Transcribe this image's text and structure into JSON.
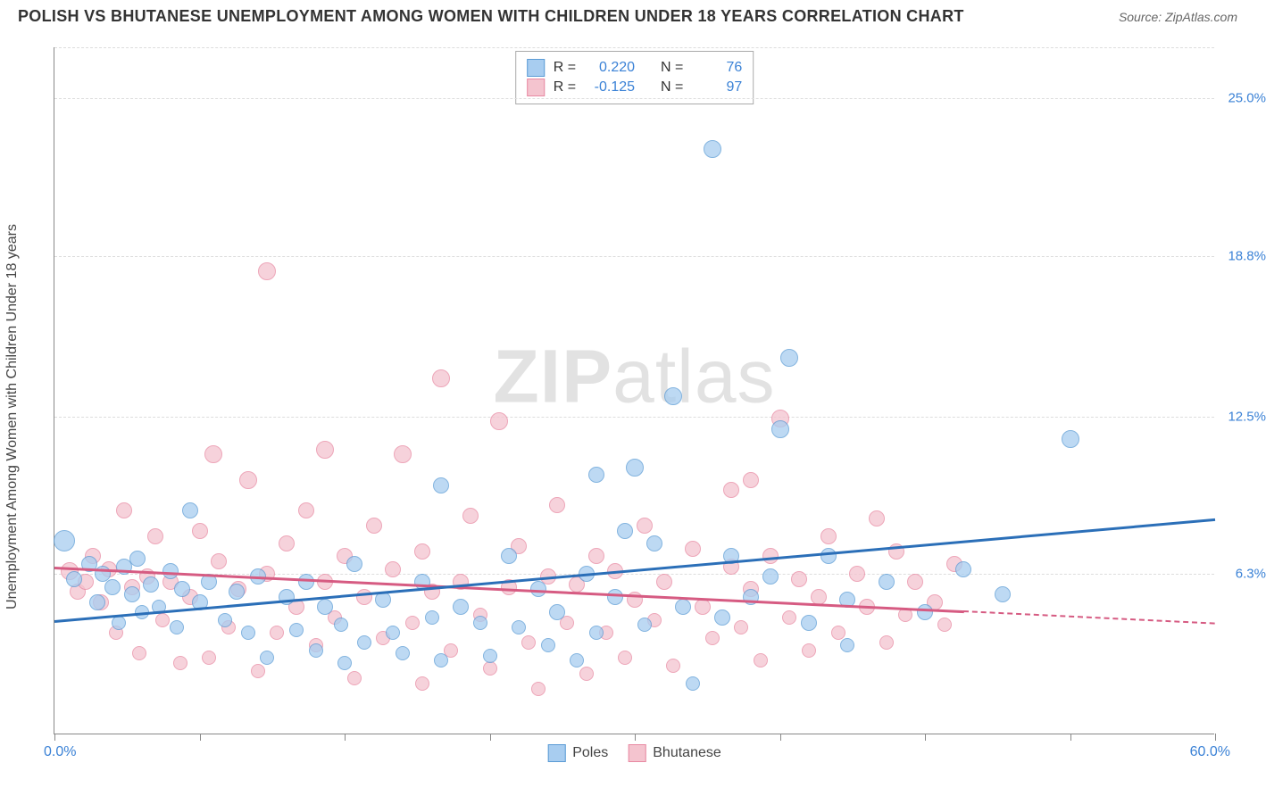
{
  "header": {
    "title": "POLISH VS BHUTANESE UNEMPLOYMENT AMONG WOMEN WITH CHILDREN UNDER 18 YEARS CORRELATION CHART",
    "source": "Source: ZipAtlas.com"
  },
  "chart": {
    "type": "scatter",
    "ylabel": "Unemployment Among Women with Children Under 18 years",
    "xlim": [
      0,
      60
    ],
    "ylim": [
      0,
      27
    ],
    "xrange_labels": {
      "min": "0.0%",
      "max": "60.0%"
    },
    "xtick_positions": [
      0,
      7.5,
      15,
      22.5,
      30,
      37.5,
      45,
      52.5,
      60
    ],
    "yticks": [
      {
        "value": 6.3,
        "label": "6.3%"
      },
      {
        "value": 12.5,
        "label": "12.5%"
      },
      {
        "value": 18.8,
        "label": "18.8%"
      },
      {
        "value": 25.0,
        "label": "25.0%"
      }
    ],
    "grid_color": "#dddddd",
    "axis_color": "#888888",
    "background_color": "#ffffff",
    "ytick_label_color": "#3b82d6",
    "xrange_label_color": "#3b82d6",
    "title_fontsize": 18,
    "label_fontsize": 16,
    "tick_fontsize": 15,
    "watermark": {
      "pre": "ZIP",
      "post": "atlas",
      "color": "#cccccc"
    },
    "legend_top": {
      "rows": [
        {
          "swatch": "poles",
          "r_label": "R =",
          "r_value": "0.220",
          "n_label": "N =",
          "n_value": "76"
        },
        {
          "swatch": "bhutanese",
          "r_label": "R =",
          "r_value": "-0.125",
          "n_label": "N =",
          "n_value": "97"
        }
      ]
    },
    "legend_bottom": [
      {
        "swatch": "poles",
        "label": "Poles"
      },
      {
        "swatch": "bhutanese",
        "label": "Bhutanese"
      }
    ],
    "series": {
      "poles": {
        "color_fill": "#a8cdf0",
        "color_stroke": "#5a9bd5",
        "trend_color": "#2b6fb8",
        "marker_r": 9,
        "trend": {
          "x1": 0,
          "y1": 4.5,
          "x2": 60,
          "y2": 8.5
        },
        "trend_dash_from_x": null,
        "points": [
          {
            "x": 0.5,
            "y": 7.6,
            "r": 12
          },
          {
            "x": 1.8,
            "y": 6.7,
            "r": 9
          },
          {
            "x": 1.0,
            "y": 6.1,
            "r": 9
          },
          {
            "x": 2.2,
            "y": 5.2,
            "r": 9
          },
          {
            "x": 2.5,
            "y": 6.3,
            "r": 9
          },
          {
            "x": 3.0,
            "y": 5.8,
            "r": 9
          },
          {
            "x": 3.3,
            "y": 4.4,
            "r": 8
          },
          {
            "x": 3.6,
            "y": 6.6,
            "r": 9
          },
          {
            "x": 4.0,
            "y": 5.5,
            "r": 9
          },
          {
            "x": 4.3,
            "y": 6.9,
            "r": 9
          },
          {
            "x": 4.5,
            "y": 4.8,
            "r": 8
          },
          {
            "x": 5.0,
            "y": 5.9,
            "r": 9
          },
          {
            "x": 5.4,
            "y": 5.0,
            "r": 8
          },
          {
            "x": 6.0,
            "y": 6.4,
            "r": 9
          },
          {
            "x": 6.3,
            "y": 4.2,
            "r": 8
          },
          {
            "x": 6.6,
            "y": 5.7,
            "r": 9
          },
          {
            "x": 7.0,
            "y": 8.8,
            "r": 9
          },
          {
            "x": 7.5,
            "y": 5.2,
            "r": 9
          },
          {
            "x": 8.0,
            "y": 6.0,
            "r": 9
          },
          {
            "x": 8.8,
            "y": 4.5,
            "r": 8
          },
          {
            "x": 9.4,
            "y": 5.6,
            "r": 9
          },
          {
            "x": 10.0,
            "y": 4.0,
            "r": 8
          },
          {
            "x": 10.5,
            "y": 6.2,
            "r": 9
          },
          {
            "x": 11.0,
            "y": 3.0,
            "r": 8
          },
          {
            "x": 12.0,
            "y": 5.4,
            "r": 9
          },
          {
            "x": 12.5,
            "y": 4.1,
            "r": 8
          },
          {
            "x": 13.0,
            "y": 6.0,
            "r": 9
          },
          {
            "x": 13.5,
            "y": 3.3,
            "r": 8
          },
          {
            "x": 14.0,
            "y": 5.0,
            "r": 9
          },
          {
            "x": 14.8,
            "y": 4.3,
            "r": 8
          },
          {
            "x": 15.0,
            "y": 2.8,
            "r": 8
          },
          {
            "x": 15.5,
            "y": 6.7,
            "r": 9
          },
          {
            "x": 16.0,
            "y": 3.6,
            "r": 8
          },
          {
            "x": 17.0,
            "y": 5.3,
            "r": 9
          },
          {
            "x": 17.5,
            "y": 4.0,
            "r": 8
          },
          {
            "x": 18.0,
            "y": 3.2,
            "r": 8
          },
          {
            "x": 19.0,
            "y": 6.0,
            "r": 9
          },
          {
            "x": 19.5,
            "y": 4.6,
            "r": 8
          },
          {
            "x": 20.0,
            "y": 9.8,
            "r": 9
          },
          {
            "x": 20.0,
            "y": 2.9,
            "r": 8
          },
          {
            "x": 21.0,
            "y": 5.0,
            "r": 9
          },
          {
            "x": 22.0,
            "y": 4.4,
            "r": 8
          },
          {
            "x": 22.5,
            "y": 3.1,
            "r": 8
          },
          {
            "x": 23.5,
            "y": 7.0,
            "r": 9
          },
          {
            "x": 24.0,
            "y": 4.2,
            "r": 8
          },
          {
            "x": 25.0,
            "y": 5.7,
            "r": 9
          },
          {
            "x": 25.5,
            "y": 3.5,
            "r": 8
          },
          {
            "x": 26.0,
            "y": 4.8,
            "r": 9
          },
          {
            "x": 27.0,
            "y": 2.9,
            "r": 8
          },
          {
            "x": 27.5,
            "y": 6.3,
            "r": 9
          },
          {
            "x": 28.0,
            "y": 4.0,
            "r": 8
          },
          {
            "x": 28.0,
            "y": 10.2,
            "r": 9
          },
          {
            "x": 29.0,
            "y": 5.4,
            "r": 9
          },
          {
            "x": 29.5,
            "y": 8.0,
            "r": 9
          },
          {
            "x": 30.0,
            "y": 10.5,
            "r": 10
          },
          {
            "x": 30.5,
            "y": 4.3,
            "r": 8
          },
          {
            "x": 31.0,
            "y": 7.5,
            "r": 9
          },
          {
            "x": 32.0,
            "y": 13.3,
            "r": 10
          },
          {
            "x": 32.5,
            "y": 5.0,
            "r": 9
          },
          {
            "x": 33.0,
            "y": 2.0,
            "r": 8
          },
          {
            "x": 34.0,
            "y": 23.0,
            "r": 10
          },
          {
            "x": 34.5,
            "y": 4.6,
            "r": 9
          },
          {
            "x": 35.0,
            "y": 7.0,
            "r": 9
          },
          {
            "x": 36.0,
            "y": 5.4,
            "r": 9
          },
          {
            "x": 37.0,
            "y": 6.2,
            "r": 9
          },
          {
            "x": 38.0,
            "y": 14.8,
            "r": 10
          },
          {
            "x": 37.5,
            "y": 12.0,
            "r": 10
          },
          {
            "x": 39.0,
            "y": 4.4,
            "r": 9
          },
          {
            "x": 40.0,
            "y": 7.0,
            "r": 9
          },
          {
            "x": 41.0,
            "y": 5.3,
            "r": 9
          },
          {
            "x": 41.0,
            "y": 3.5,
            "r": 8
          },
          {
            "x": 43.0,
            "y": 6.0,
            "r": 9
          },
          {
            "x": 45.0,
            "y": 4.8,
            "r": 9
          },
          {
            "x": 47.0,
            "y": 6.5,
            "r": 9
          },
          {
            "x": 52.5,
            "y": 11.6,
            "r": 10
          },
          {
            "x": 49.0,
            "y": 5.5,
            "r": 9
          }
        ]
      },
      "bhutanese": {
        "color_fill": "#f4c4cf",
        "color_stroke": "#e889a2",
        "trend_color": "#d65b82",
        "marker_r": 9,
        "trend": {
          "x1": 0,
          "y1": 6.6,
          "x2": 60,
          "y2": 4.4
        },
        "trend_dash_from_x": 47,
        "points": [
          {
            "x": 0.8,
            "y": 6.4,
            "r": 10
          },
          {
            "x": 1.2,
            "y": 5.6,
            "r": 9
          },
          {
            "x": 1.6,
            "y": 6.0,
            "r": 9
          },
          {
            "x": 2.0,
            "y": 7.0,
            "r": 9
          },
          {
            "x": 2.4,
            "y": 5.2,
            "r": 9
          },
          {
            "x": 2.8,
            "y": 6.5,
            "r": 9
          },
          {
            "x": 3.2,
            "y": 4.0,
            "r": 8
          },
          {
            "x": 3.6,
            "y": 8.8,
            "r": 9
          },
          {
            "x": 4.0,
            "y": 5.8,
            "r": 9
          },
          {
            "x": 4.4,
            "y": 3.2,
            "r": 8
          },
          {
            "x": 4.8,
            "y": 6.2,
            "r": 9
          },
          {
            "x": 5.2,
            "y": 7.8,
            "r": 9
          },
          {
            "x": 5.6,
            "y": 4.5,
            "r": 8
          },
          {
            "x": 6.0,
            "y": 6.0,
            "r": 9
          },
          {
            "x": 6.5,
            "y": 2.8,
            "r": 8
          },
          {
            "x": 7.0,
            "y": 5.4,
            "r": 9
          },
          {
            "x": 7.5,
            "y": 8.0,
            "r": 9
          },
          {
            "x": 8.0,
            "y": 3.0,
            "r": 8
          },
          {
            "x": 8.2,
            "y": 11.0,
            "r": 10
          },
          {
            "x": 8.5,
            "y": 6.8,
            "r": 9
          },
          {
            "x": 9.0,
            "y": 4.2,
            "r": 8
          },
          {
            "x": 9.5,
            "y": 5.7,
            "r": 9
          },
          {
            "x": 10.0,
            "y": 10.0,
            "r": 10
          },
          {
            "x": 10.5,
            "y": 2.5,
            "r": 8
          },
          {
            "x": 11.0,
            "y": 6.3,
            "r": 9
          },
          {
            "x": 11.0,
            "y": 18.2,
            "r": 10
          },
          {
            "x": 11.5,
            "y": 4.0,
            "r": 8
          },
          {
            "x": 12.0,
            "y": 7.5,
            "r": 9
          },
          {
            "x": 12.5,
            "y": 5.0,
            "r": 9
          },
          {
            "x": 13.0,
            "y": 8.8,
            "r": 9
          },
          {
            "x": 13.5,
            "y": 3.5,
            "r": 8
          },
          {
            "x": 14.0,
            "y": 6.0,
            "r": 9
          },
          {
            "x": 14.0,
            "y": 11.2,
            "r": 10
          },
          {
            "x": 14.5,
            "y": 4.6,
            "r": 8
          },
          {
            "x": 15.0,
            "y": 7.0,
            "r": 9
          },
          {
            "x": 15.5,
            "y": 2.2,
            "r": 8
          },
          {
            "x": 16.0,
            "y": 5.4,
            "r": 9
          },
          {
            "x": 16.5,
            "y": 8.2,
            "r": 9
          },
          {
            "x": 17.0,
            "y": 3.8,
            "r": 8
          },
          {
            "x": 17.5,
            "y": 6.5,
            "r": 9
          },
          {
            "x": 18.0,
            "y": 11.0,
            "r": 10
          },
          {
            "x": 18.5,
            "y": 4.4,
            "r": 8
          },
          {
            "x": 19.0,
            "y": 7.2,
            "r": 9
          },
          {
            "x": 19.0,
            "y": 2.0,
            "r": 8
          },
          {
            "x": 19.5,
            "y": 5.6,
            "r": 9
          },
          {
            "x": 20.0,
            "y": 14.0,
            "r": 10
          },
          {
            "x": 20.5,
            "y": 3.3,
            "r": 8
          },
          {
            "x": 21.0,
            "y": 6.0,
            "r": 9
          },
          {
            "x": 21.5,
            "y": 8.6,
            "r": 9
          },
          {
            "x": 22.0,
            "y": 4.7,
            "r": 8
          },
          {
            "x": 23.0,
            "y": 12.3,
            "r": 10
          },
          {
            "x": 22.5,
            "y": 2.6,
            "r": 8
          },
          {
            "x": 23.5,
            "y": 5.8,
            "r": 9
          },
          {
            "x": 24.0,
            "y": 7.4,
            "r": 9
          },
          {
            "x": 24.5,
            "y": 3.6,
            "r": 8
          },
          {
            "x": 25.0,
            "y": 1.8,
            "r": 8
          },
          {
            "x": 25.5,
            "y": 6.2,
            "r": 9
          },
          {
            "x": 26.0,
            "y": 9.0,
            "r": 9
          },
          {
            "x": 26.5,
            "y": 4.4,
            "r": 8
          },
          {
            "x": 27.0,
            "y": 5.9,
            "r": 9
          },
          {
            "x": 27.5,
            "y": 2.4,
            "r": 8
          },
          {
            "x": 28.0,
            "y": 7.0,
            "r": 9
          },
          {
            "x": 28.5,
            "y": 4.0,
            "r": 8
          },
          {
            "x": 29.0,
            "y": 6.4,
            "r": 9
          },
          {
            "x": 29.5,
            "y": 3.0,
            "r": 8
          },
          {
            "x": 30.0,
            "y": 5.3,
            "r": 9
          },
          {
            "x": 30.5,
            "y": 8.2,
            "r": 9
          },
          {
            "x": 31.0,
            "y": 4.5,
            "r": 8
          },
          {
            "x": 31.5,
            "y": 6.0,
            "r": 9
          },
          {
            "x": 32.0,
            "y": 2.7,
            "r": 8
          },
          {
            "x": 33.0,
            "y": 7.3,
            "r": 9
          },
          {
            "x": 33.5,
            "y": 5.0,
            "r": 9
          },
          {
            "x": 34.0,
            "y": 3.8,
            "r": 8
          },
          {
            "x": 35.0,
            "y": 6.6,
            "r": 9
          },
          {
            "x": 35.0,
            "y": 9.6,
            "r": 9
          },
          {
            "x": 35.5,
            "y": 4.2,
            "r": 8
          },
          {
            "x": 36.0,
            "y": 5.7,
            "r": 9
          },
          {
            "x": 36.5,
            "y": 2.9,
            "r": 8
          },
          {
            "x": 37.5,
            "y": 12.4,
            "r": 10
          },
          {
            "x": 37.0,
            "y": 7.0,
            "r": 9
          },
          {
            "x": 38.0,
            "y": 4.6,
            "r": 8
          },
          {
            "x": 38.5,
            "y": 6.1,
            "r": 9
          },
          {
            "x": 39.0,
            "y": 3.3,
            "r": 8
          },
          {
            "x": 39.5,
            "y": 5.4,
            "r": 9
          },
          {
            "x": 40.0,
            "y": 7.8,
            "r": 9
          },
          {
            "x": 40.5,
            "y": 4.0,
            "r": 8
          },
          {
            "x": 41.5,
            "y": 6.3,
            "r": 9
          },
          {
            "x": 42.0,
            "y": 5.0,
            "r": 9
          },
          {
            "x": 43.0,
            "y": 3.6,
            "r": 8
          },
          {
            "x": 43.5,
            "y": 7.2,
            "r": 9
          },
          {
            "x": 44.0,
            "y": 4.7,
            "r": 8
          },
          {
            "x": 44.5,
            "y": 6.0,
            "r": 9
          },
          {
            "x": 45.5,
            "y": 5.2,
            "r": 9
          },
          {
            "x": 46.0,
            "y": 4.3,
            "r": 8
          },
          {
            "x": 46.5,
            "y": 6.7,
            "r": 9
          },
          {
            "x": 42.5,
            "y": 8.5,
            "r": 9
          },
          {
            "x": 36.0,
            "y": 10.0,
            "r": 9
          }
        ]
      }
    }
  }
}
